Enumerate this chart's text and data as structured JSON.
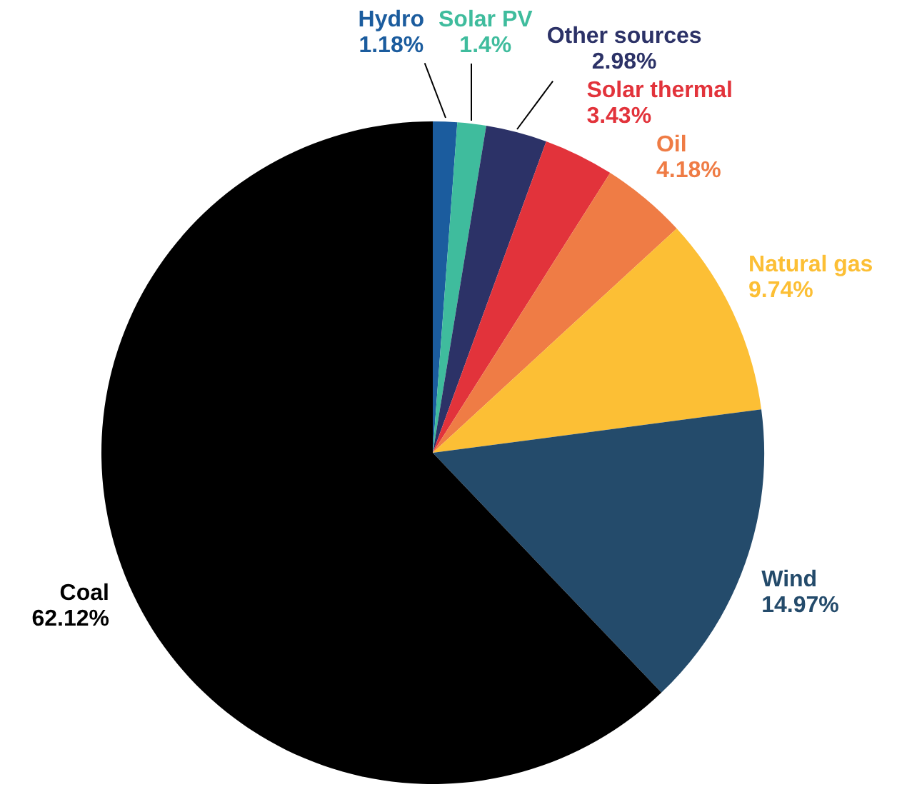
{
  "chart_data": {
    "type": "pie",
    "categories": [
      "Hydro",
      "Solar PV",
      "Other sources",
      "Solar thermal",
      "Oil",
      "Natural gas",
      "Wind",
      "Coal"
    ],
    "values": [
      1.18,
      1.4,
      2.98,
      3.43,
      4.18,
      9.74,
      14.97,
      62.12
    ],
    "value_labels": [
      "1.18%",
      "1.4%",
      "2.98%",
      "3.43%",
      "4.18%",
      "9.74%",
      "14.97%",
      "62.12%"
    ],
    "colors": [
      "#1b5c9e",
      "#3fbc9d",
      "#2c3267",
      "#e2333b",
      "#ef7c45",
      "#fcbf35",
      "#244b6b",
      "#000000"
    ]
  }
}
